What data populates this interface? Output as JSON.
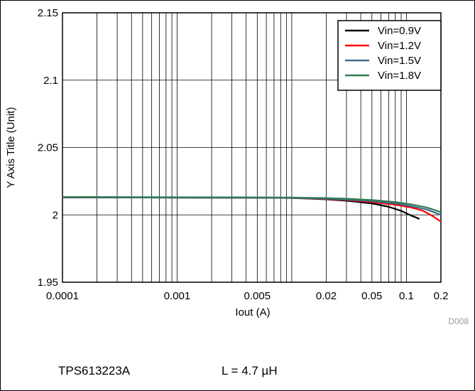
{
  "chart_data": {
    "type": "line",
    "title": "",
    "xlabel": "Iout (A)",
    "ylabel": "Y Axis Title (Unit)",
    "x_scale": "log",
    "xlim": [
      0.0001,
      0.2
    ],
    "ylim": [
      1.95,
      2.15
    ],
    "x_tick_labels": [
      "0.0001",
      "0.001",
      "0.005",
      "0.02",
      "0.05",
      "0.1",
      "0.2"
    ],
    "x_tick_values": [
      0.0001,
      0.001,
      0.005,
      0.02,
      0.05,
      0.1,
      0.2
    ],
    "y_tick_labels": [
      "1.95",
      "2",
      "2.05",
      "2.1",
      "2.15"
    ],
    "y_tick_values": [
      1.95,
      2.0,
      2.05,
      2.1,
      2.15
    ],
    "grid": true,
    "legend_position": "top-right",
    "watermark": "D008",
    "series": [
      {
        "name": "Vin=0.9V",
        "color": "#000000",
        "x": [
          0.0001,
          0.001,
          0.005,
          0.01,
          0.02,
          0.03,
          0.05,
          0.07,
          0.09,
          0.11,
          0.13
        ],
        "y": [
          2.013,
          2.0128,
          2.0127,
          2.0125,
          2.0115,
          2.0105,
          2.0085,
          2.006,
          2.003,
          1.9995,
          1.997
        ]
      },
      {
        "name": "Vin=1.2V",
        "color": "#ff0000",
        "x": [
          0.0001,
          0.001,
          0.005,
          0.01,
          0.02,
          0.03,
          0.05,
          0.08,
          0.11,
          0.14,
          0.17,
          0.2
        ],
        "y": [
          2.013,
          2.0128,
          2.0127,
          2.0125,
          2.0118,
          2.011,
          2.0095,
          2.0075,
          2.0055,
          2.003,
          1.999,
          1.995
        ]
      },
      {
        "name": "Vin=1.5V",
        "color": "#3d6b8c",
        "x": [
          0.0001,
          0.001,
          0.005,
          0.01,
          0.02,
          0.03,
          0.05,
          0.08,
          0.11,
          0.15,
          0.2
        ],
        "y": [
          2.013,
          2.0128,
          2.0127,
          2.0126,
          2.012,
          2.0113,
          2.0102,
          2.0085,
          2.0065,
          2.004,
          2.0
        ]
      },
      {
        "name": "Vin=1.8V",
        "color": "#2e7d50",
        "x": [
          0.0001,
          0.001,
          0.005,
          0.01,
          0.02,
          0.03,
          0.05,
          0.08,
          0.11,
          0.15,
          0.2
        ],
        "y": [
          2.0133,
          2.0131,
          2.013,
          2.0129,
          2.0125,
          2.012,
          2.011,
          2.0095,
          2.0078,
          2.0055,
          2.002
        ]
      }
    ]
  },
  "captions": {
    "part": "TPS613223A",
    "inductor": "L = 4.7 µH"
  }
}
